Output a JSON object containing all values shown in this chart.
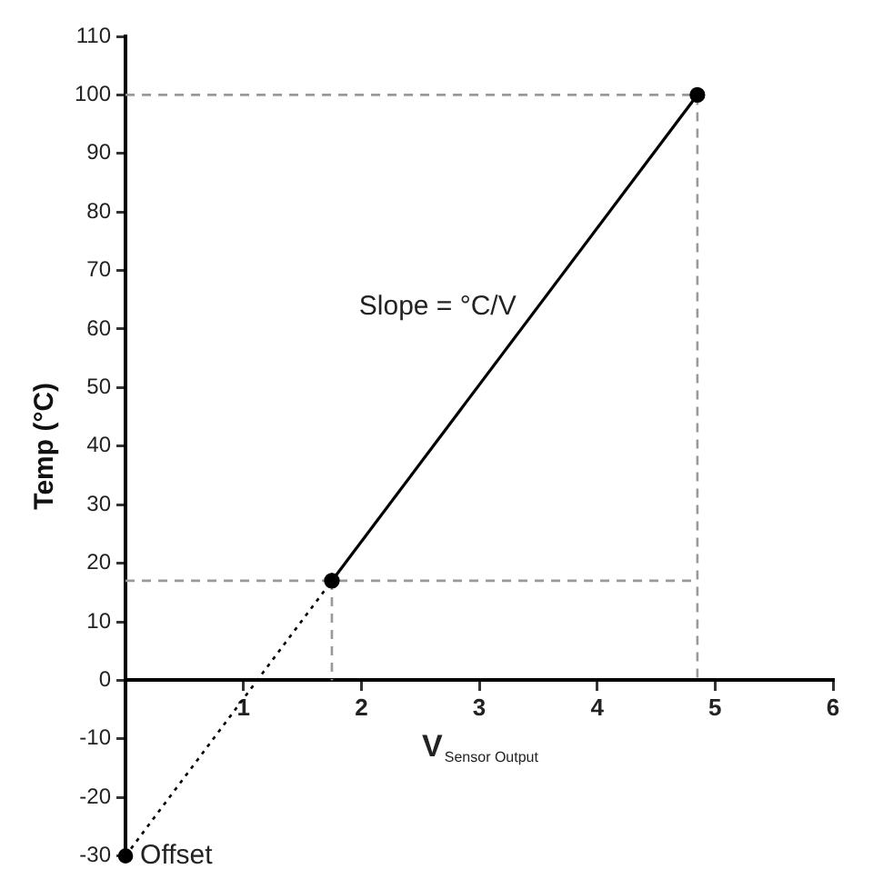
{
  "chart_data": {
    "type": "line",
    "ylabel": "Temp (°C)",
    "xlabel": "V$_{Sensor Output}$",
    "xlim": [
      0,
      6
    ],
    "xticks": [
      1,
      2,
      3,
      4,
      5,
      6
    ],
    "ylim": [
      -30,
      110
    ],
    "yticks": [
      -30,
      -20,
      -10,
      0,
      10,
      20,
      30,
      40,
      50,
      60,
      70,
      80,
      90,
      100,
      110
    ],
    "annotations": [
      "Slope = °C/V",
      {
        "text": "Offset",
        "x": 0,
        "y": -30
      }
    ],
    "series": [
      {
        "color": "#000000",
        "x": [
          1.75,
          4.85
        ],
        "values": [
          17,
          100
        ],
        "marker": "circle",
        "line_style": "solid"
      },
      {
        "color": "#000000",
        "x": [
          0,
          1.75
        ],
        "values": [
          -30,
          17
        ],
        "marker": "circle",
        "line_style": "dotted"
      },
      {
        "color": "#999999",
        "x": [
          0,
          4.85,
          4.85
        ],
        "values": [
          100,
          100,
          0
        ],
        "marker": "none",
        "line_style": "dashed"
      },
      {
        "color": "#999999",
        "x": [
          0,
          4.85
        ],
        "values": [
          17,
          17
        ],
        "marker": "none",
        "line_style": "dashed"
      },
      {
        "color": "#999999",
        "x": [
          1.75,
          1.75
        ],
        "values": [
          17,
          0
        ],
        "marker": "none",
        "line_style": "dashed"
      }
    ]
  }
}
